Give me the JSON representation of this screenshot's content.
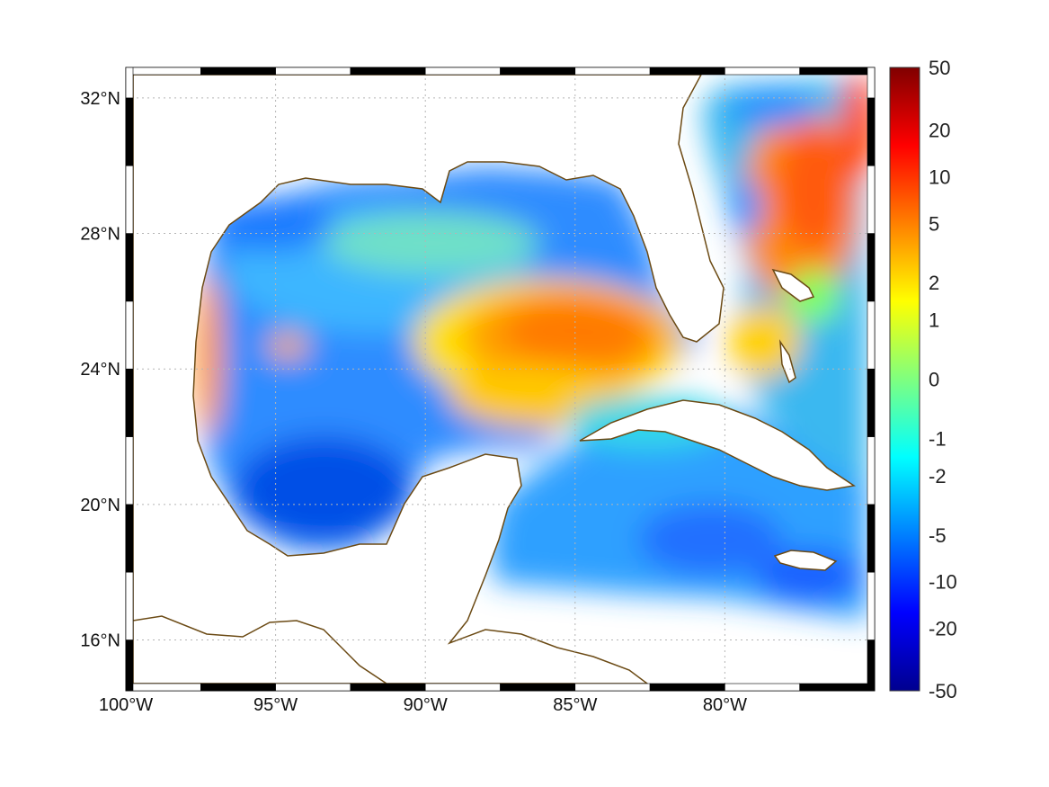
{
  "map": {
    "lon_range": [
      -100,
      -75
    ],
    "lat_range": [
      14.5,
      32.9
    ],
    "lon_ticks": [
      {
        "value": -100,
        "label": "100°W"
      },
      {
        "value": -95,
        "label": "95°W"
      },
      {
        "value": -90,
        "label": "90°W"
      },
      {
        "value": -85,
        "label": "85°W"
      },
      {
        "value": -80,
        "label": "80°W"
      }
    ],
    "lat_ticks": [
      {
        "value": 16,
        "label": "16°N"
      },
      {
        "value": 20,
        "label": "20°N"
      },
      {
        "value": 24,
        "label": "24°N"
      },
      {
        "value": 28,
        "label": "28°N"
      },
      {
        "value": 32,
        "label": "32°N"
      }
    ],
    "grid": true,
    "frame_style": "black-white checkered border",
    "coastline_color": "#6b4a14",
    "colormap": "jet",
    "land_color": "#ffffff"
  },
  "colorbar": {
    "placement": "right",
    "labels": [
      "50",
      "20",
      "10",
      "5",
      "2",
      "1",
      "0",
      "-1",
      "-2",
      "-5",
      "-10",
      "-20",
      "-50"
    ]
  }
}
